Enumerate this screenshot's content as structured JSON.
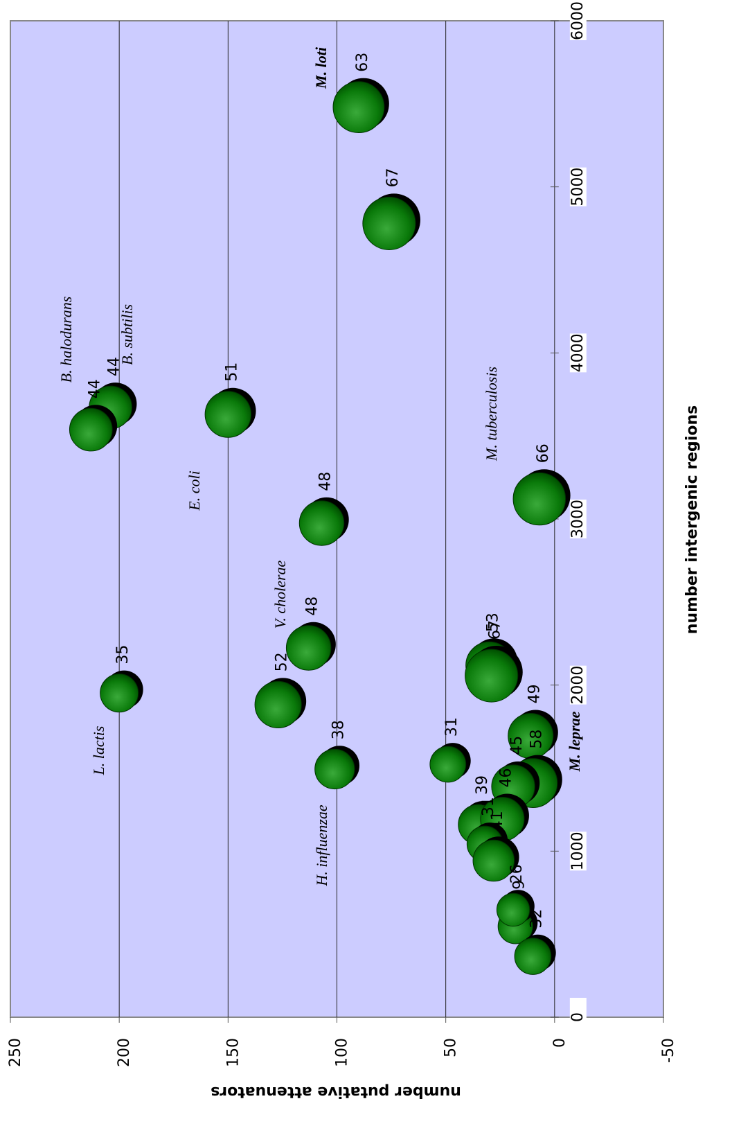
{
  "chart_data": {
    "type": "bubble",
    "x_label": "number intergenic regions",
    "y_label": "number putative attenuators",
    "xlim": [
      0,
      6000
    ],
    "xticks": [
      0,
      1000,
      2000,
      3000,
      4000,
      5000,
      6000
    ],
    "ylim": [
      -50,
      250
    ],
    "yticks": [
      -50,
      0,
      50,
      100,
      150,
      200,
      250
    ],
    "grid": true,
    "background": "#ccccff",
    "series": [
      {
        "color": "#007a00",
        "x": [
          5480,
          4780,
          3672,
          3538,
          3630,
          2975,
          3121,
          2224,
          1882,
          1952,
          2119,
          2057,
          1694,
          1494,
          1523,
          1410,
          1389,
          1160,
          1193,
          1043,
          943,
          547,
          647,
          367
        ],
        "y": [
          90,
          76,
          204,
          213,
          150,
          107,
          7,
          113,
          127,
          200,
          30,
          29,
          11,
          101,
          49,
          10,
          19,
          35,
          24,
          32,
          28,
          18,
          19,
          10
        ],
        "size": [
          63,
          67,
          44,
          44,
          51,
          48,
          66,
          48,
          52,
          35,
          53,
          67,
          49,
          38,
          31,
          58,
          45,
          39,
          46,
          31,
          41,
          29,
          26,
          32
        ]
      }
    ],
    "annotations": [
      "M. loti",
      "B. halodurans",
      "B. subtilis",
      "E. coli",
      "V. cholerae",
      "L. lactis",
      "H. influenzae",
      "M. tuberculosis",
      "M. leprae"
    ]
  }
}
